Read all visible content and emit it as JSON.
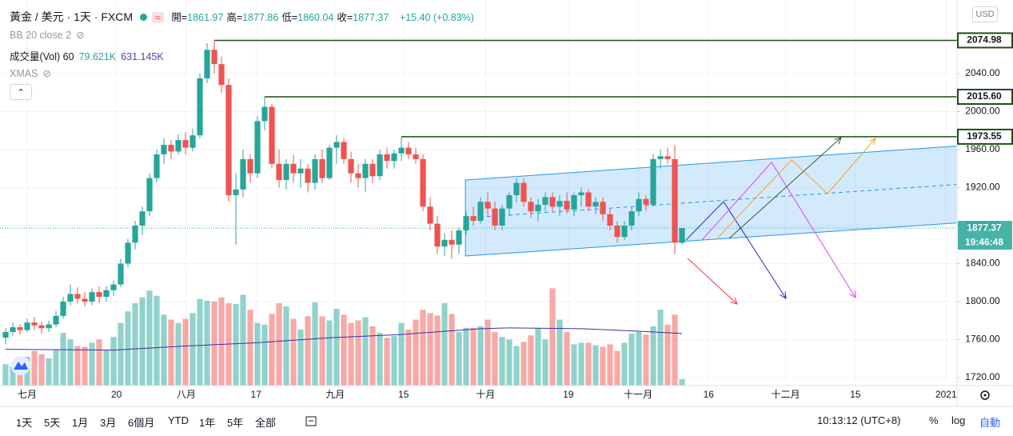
{
  "chart_data": {
    "type": "candlestick",
    "title": "黃金 / 美元 · 1天 · FXCM",
    "symbol_badge": "≈",
    "ohlc_legend_labels": [
      "開=",
      "高=",
      "低=",
      "收="
    ],
    "change_label": "+15.40 (+0.83%)",
    "indicators": {
      "bb": "BB 20 close 2",
      "volume": "成交量(Vol) 60",
      "xmas": "XMAS"
    },
    "volume_label": "79.621K",
    "volume_ma_label": "631.145K",
    "currency": "USD",
    "countdown": "19:46:48",
    "up_color": "#26a69a",
    "down_color": "#ef5350",
    "volume_ma_color": "#3f2fa0",
    "level_color": "#1f4d12",
    "channel_color": "#2196f3",
    "ohlc": [
      [
        1762,
        1772,
        1755,
        1768
      ],
      [
        1768,
        1778,
        1764,
        1773
      ],
      [
        1773,
        1776,
        1765,
        1770
      ],
      [
        1770,
        1782,
        1768,
        1778
      ],
      [
        1778,
        1784,
        1770,
        1775
      ],
      [
        1775,
        1779,
        1766,
        1772
      ],
      [
        1772,
        1780,
        1768,
        1776
      ],
      [
        1776,
        1790,
        1773,
        1785
      ],
      [
        1785,
        1805,
        1782,
        1800
      ],
      [
        1800,
        1818,
        1796,
        1808
      ],
      [
        1808,
        1815,
        1798,
        1803
      ],
      [
        1803,
        1810,
        1795,
        1800
      ],
      [
        1800,
        1814,
        1796,
        1810
      ],
      [
        1810,
        1816,
        1798,
        1805
      ],
      [
        1805,
        1816,
        1800,
        1812
      ],
      [
        1812,
        1822,
        1806,
        1818
      ],
      [
        1818,
        1845,
        1815,
        1840
      ],
      [
        1840,
        1866,
        1836,
        1862
      ],
      [
        1862,
        1885,
        1855,
        1880
      ],
      [
        1880,
        1900,
        1870,
        1895
      ],
      [
        1895,
        1935,
        1890,
        1930
      ],
      [
        1930,
        1960,
        1925,
        1955
      ],
      [
        1955,
        1972,
        1945,
        1965
      ],
      [
        1965,
        1970,
        1950,
        1958
      ],
      [
        1958,
        1976,
        1955,
        1970
      ],
      [
        1970,
        1978,
        1955,
        1962
      ],
      [
        1962,
        1982,
        1958,
        1975
      ],
      [
        1975,
        2040,
        1972,
        2035
      ],
      [
        2035,
        2072,
        2030,
        2065
      ],
      [
        2065,
        2074.98,
        2040,
        2050
      ],
      [
        2050,
        2058,
        2020,
        2028
      ],
      [
        2028,
        2035,
        1905,
        1912
      ],
      [
        1912,
        1935,
        1860,
        1918
      ],
      [
        1918,
        1960,
        1910,
        1950
      ],
      [
        1950,
        1955,
        1925,
        1935
      ],
      [
        1935,
        1995,
        1930,
        1990
      ],
      [
        1990,
        2015.6,
        1980,
        2005
      ],
      [
        2005,
        2008,
        1940,
        1945
      ],
      [
        1945,
        1960,
        1920,
        1928
      ],
      [
        1928,
        1950,
        1918,
        1945
      ],
      [
        1945,
        1955,
        1925,
        1935
      ],
      [
        1935,
        1950,
        1920,
        1940
      ],
      [
        1940,
        1945,
        1915,
        1925
      ],
      [
        1925,
        1955,
        1918,
        1950
      ],
      [
        1950,
        1960,
        1925,
        1930
      ],
      [
        1930,
        1965,
        1928,
        1962
      ],
      [
        1962,
        1975,
        1945,
        1968
      ],
      [
        1968,
        1972,
        1945,
        1950
      ],
      [
        1950,
        1958,
        1925,
        1935
      ],
      [
        1935,
        1945,
        1920,
        1930
      ],
      [
        1930,
        1950,
        1915,
        1945
      ],
      [
        1945,
        1950,
        1925,
        1932
      ],
      [
        1932,
        1960,
        1928,
        1955
      ],
      [
        1955,
        1962,
        1940,
        1948
      ],
      [
        1948,
        1960,
        1940,
        1956
      ],
      [
        1956,
        1973.55,
        1948,
        1962
      ],
      [
        1962,
        1968,
        1950,
        1955
      ],
      [
        1955,
        1962,
        1945,
        1950
      ],
      [
        1950,
        1955,
        1895,
        1900
      ],
      [
        1900,
        1910,
        1875,
        1882
      ],
      [
        1882,
        1890,
        1850,
        1858
      ],
      [
        1858,
        1872,
        1848,
        1865
      ],
      [
        1865,
        1875,
        1845,
        1860
      ],
      [
        1860,
        1878,
        1850,
        1875
      ],
      [
        1875,
        1895,
        1870,
        1890
      ],
      [
        1890,
        1900,
        1880,
        1885
      ],
      [
        1885,
        1910,
        1882,
        1905
      ],
      [
        1905,
        1915,
        1890,
        1898
      ],
      [
        1898,
        1905,
        1875,
        1880
      ],
      [
        1880,
        1902,
        1875,
        1898
      ],
      [
        1898,
        1915,
        1890,
        1912
      ],
      [
        1912,
        1930,
        1905,
        1925
      ],
      [
        1925,
        1930,
        1900,
        1905
      ],
      [
        1905,
        1910,
        1888,
        1895
      ],
      [
        1895,
        1908,
        1885,
        1902
      ],
      [
        1902,
        1915,
        1895,
        1910
      ],
      [
        1910,
        1915,
        1895,
        1900
      ],
      [
        1900,
        1912,
        1890,
        1906
      ],
      [
        1906,
        1915,
        1893,
        1897
      ],
      [
        1897,
        1915,
        1890,
        1912
      ],
      [
        1912,
        1920,
        1900,
        1915
      ],
      [
        1915,
        1918,
        1895,
        1900
      ],
      [
        1900,
        1910,
        1892,
        1905
      ],
      [
        1905,
        1910,
        1885,
        1892
      ],
      [
        1892,
        1898,
        1875,
        1880
      ],
      [
        1880,
        1885,
        1862,
        1868
      ],
      [
        1868,
        1885,
        1865,
        1880
      ],
      [
        1880,
        1900,
        1875,
        1895
      ],
      [
        1895,
        1915,
        1890,
        1908
      ],
      [
        1908,
        1912,
        1895,
        1902
      ],
      [
        1902,
        1955,
        1900,
        1950
      ],
      [
        1950,
        1960,
        1940,
        1953
      ],
      [
        1953,
        1962,
        1945,
        1950
      ],
      [
        1950,
        1965,
        1850,
        1862
      ],
      [
        1861.97,
        1877.86,
        1860.04,
        1877.37
      ]
    ],
    "volume": [
      260,
      230,
      300,
      350,
      420,
      380,
      330,
      430,
      640,
      560,
      480,
      470,
      520,
      560,
      430,
      590,
      760,
      900,
      1000,
      1070,
      1150,
      1090,
      860,
      800,
      760,
      810,
      880,
      1050,
      1030,
      1020,
      1070,
      1000,
      990,
      1100,
      920,
      760,
      740,
      870,
      1000,
      960,
      810,
      680,
      840,
      1010,
      840,
      790,
      930,
      860,
      760,
      790,
      830,
      720,
      640,
      580,
      600,
      760,
      680,
      800,
      920,
      880,
      850,
      1000,
      870,
      650,
      700,
      700,
      720,
      800,
      650,
      590,
      560,
      480,
      530,
      610,
      700,
      560,
      1180,
      800,
      650,
      500,
      520,
      520,
      490,
      470,
      500,
      420,
      520,
      630,
      650,
      620,
      720,
      920,
      740,
      860,
      79.621
    ],
    "volume_ma": {
      "x": [
        0,
        15,
        25,
        35,
        45,
        55,
        66,
        70,
        80,
        88,
        94
      ],
      "values": [
        440,
        430,
        480,
        520,
        580,
        620,
        690,
        700,
        690,
        660,
        631.145
      ]
    },
    "volume_ylim": [
      0,
      4675
    ],
    "channel": {
      "x": [
        63.9,
        132.6
      ],
      "upper": [
        1928,
        1964
      ],
      "lower": [
        1848,
        1883
      ]
    },
    "levels": [
      2074.98,
      {
        "value": 2015.6,
        "label": "2015.60"
      },
      1973.55
    ],
    "xlim": [
      -0.78,
      132.22
    ],
    "ylim": [
      1711.58,
      2117.47
    ],
    "yticks": [
      {
        "value": 1720,
        "label": "1720.00"
      },
      {
        "value": 1760,
        "label": "1760.00"
      },
      {
        "value": 1800,
        "label": "1800.00"
      },
      {
        "value": 1840,
        "label": "1840.00"
      },
      {
        "value": 1880,
        "label": "1880.00"
      },
      {
        "value": 1920,
        "label": "1920.00"
      },
      {
        "value": 1960,
        "label": "1960.00"
      },
      {
        "value": 2000,
        "label": "2000.00"
      },
      {
        "value": 2040,
        "label": "2040.00"
      }
    ],
    "xticks": [
      {
        "value": 3,
        "label": "七月"
      },
      {
        "value": 15.4,
        "label": "20"
      },
      {
        "value": 25.1,
        "label": "八月"
      },
      {
        "value": 34.8,
        "label": "17"
      },
      {
        "value": 45.8,
        "label": "九月"
      },
      {
        "value": 55.3,
        "label": "15"
      },
      {
        "value": 66.7,
        "label": "十月"
      },
      {
        "value": 78.2,
        "label": "19"
      },
      {
        "value": 87.9,
        "label": "十一月"
      },
      {
        "value": 97.7,
        "label": "16"
      },
      {
        "value": 108.4,
        "label": "十二月"
      },
      {
        "value": 118.1,
        "label": "15"
      },
      {
        "value": 130.7,
        "label": "2021"
      }
    ],
    "grid": true
  },
  "toolbar": {
    "ranges": [
      "1天",
      "5天",
      "1月",
      "3月",
      "6個月",
      "YTD",
      "1年",
      "5年",
      "全部"
    ],
    "time": "10:13:12 (UTC+8)",
    "options": [
      "%",
      "log",
      "自動"
    ]
  }
}
